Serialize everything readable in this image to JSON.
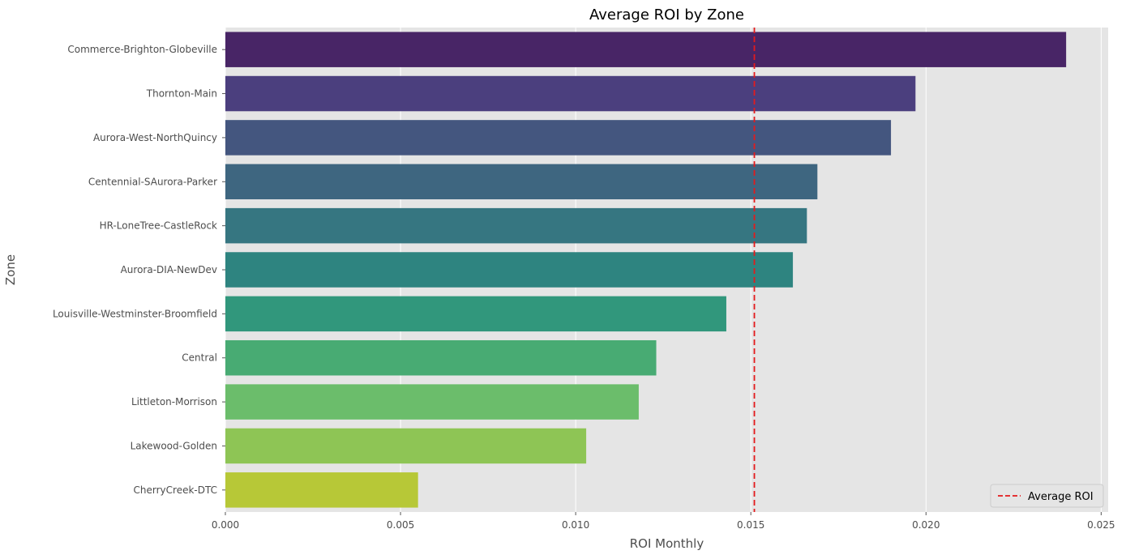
{
  "chart_data": {
    "type": "bar",
    "orientation": "horizontal",
    "title": "Average ROI by Zone",
    "xlabel": "ROI Monthly",
    "ylabel": "Zone",
    "xlim": [
      0,
      0.0252
    ],
    "xticks": [
      0.0,
      0.005,
      0.01,
      0.015,
      0.02,
      0.025
    ],
    "xtick_labels": [
      "0.000",
      "0.005",
      "0.010",
      "0.015",
      "0.020",
      "0.025"
    ],
    "grid": true,
    "categories": [
      "Commerce-Brighton-Globeville",
      "Thornton-Main",
      "Aurora-West-NorthQuincy",
      "Centennial-SAurora-Parker",
      "HR-LoneTree-CastleRock",
      "Aurora-DIA-NewDev",
      "Louisville-Westminster-Broomfield",
      "Central",
      "Littleton-Morrison",
      "Lakewood-Golden",
      "CherryCreek-DTC"
    ],
    "values": [
      0.024,
      0.0197,
      0.019,
      0.0169,
      0.0166,
      0.0162,
      0.0143,
      0.0123,
      0.0118,
      0.0103,
      0.0055
    ],
    "colors": [
      "#482566",
      "#4b3f7e",
      "#44567f",
      "#3e6680",
      "#367681",
      "#2e8480",
      "#31977c",
      "#48ab73",
      "#6bbd6b",
      "#8ec555",
      "#b7c837"
    ],
    "reference_line": {
      "label": "Average ROI",
      "value": 0.0151,
      "color": "#e41a1c",
      "style": "dashed"
    },
    "legend": {
      "position": "bottom-right",
      "entries": [
        "Average ROI"
      ]
    },
    "plot_background": "#e5e5e5",
    "grid_color": "#ffffff"
  }
}
